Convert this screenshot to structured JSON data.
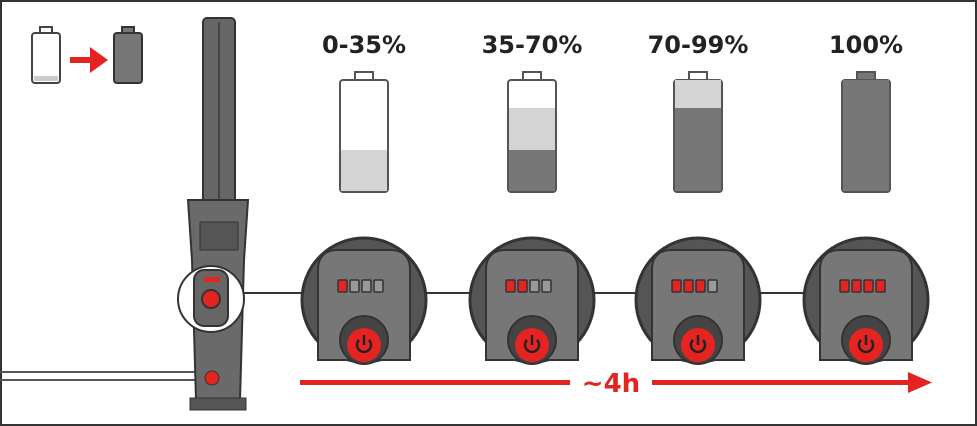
{
  "stages": [
    {
      "label": "0-35%"
    },
    {
      "label": "35-70%"
    },
    {
      "label": "70-99%"
    },
    {
      "label": "100%"
    }
  ],
  "duration": "~4h"
}
